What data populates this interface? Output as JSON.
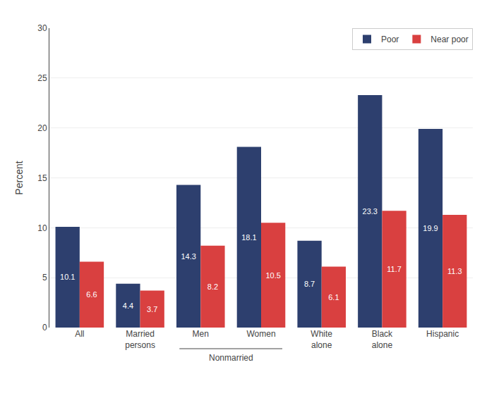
{
  "chart_data": {
    "type": "bar",
    "categories": [
      "All",
      "Married\npersons",
      "Men",
      "Women",
      "White\nalone",
      "Black\nalone",
      "Hispanic"
    ],
    "series": [
      {
        "name": "Poor",
        "color": "#2d3f6e",
        "values": [
          10.1,
          4.4,
          14.3,
          18.1,
          8.7,
          23.3,
          19.9
        ]
      },
      {
        "name": "Near poor",
        "color": "#d94040",
        "values": [
          6.6,
          3.7,
          8.2,
          10.5,
          6.1,
          11.7,
          11.3
        ]
      }
    ],
    "ylabel": "Percent",
    "ylim": [
      0,
      30
    ],
    "yticks": [
      0,
      5,
      10,
      15,
      20,
      25,
      30
    ],
    "grid": true,
    "legend": "upper right",
    "data_labels": true,
    "annotations": [
      {
        "text": "Nonmarried",
        "span": [
          "Men",
          "Women"
        ]
      }
    ]
  }
}
